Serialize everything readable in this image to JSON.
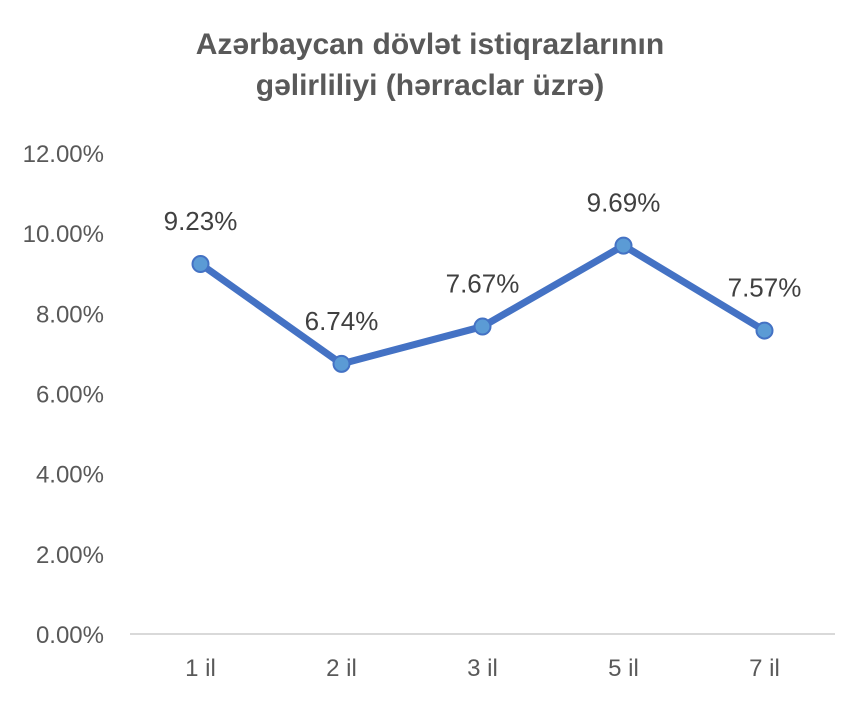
{
  "chart_data": {
    "type": "line",
    "title_lines": [
      "Azərbaycan dövlət istiqrazlarının",
      "gəlirliliyi (hərraclar üzrə)"
    ],
    "categories": [
      "1 il",
      "2 il",
      "3 il",
      "5 il",
      "7 il"
    ],
    "series": [
      {
        "values": [
          0.0923,
          0.0674,
          0.0767,
          0.0969,
          0.0757
        ],
        "labels": [
          "9.23%",
          "6.74%",
          "7.67%",
          "9.69%",
          "7.57%"
        ],
        "color": "#4472C4",
        "marker_fill": "#5B9BD5"
      }
    ],
    "yticks": [
      "0.00%",
      "2.00%",
      "4.00%",
      "6.00%",
      "8.00%",
      "10.00%",
      "12.00%"
    ],
    "ylim": [
      0,
      0.12
    ],
    "grid": false,
    "legend": "none"
  }
}
